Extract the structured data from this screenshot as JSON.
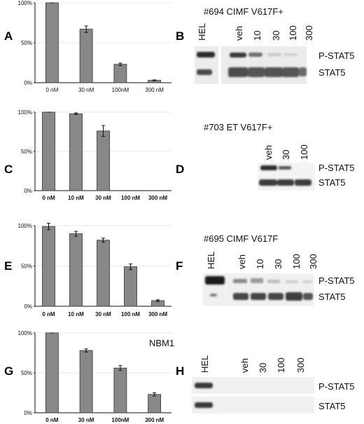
{
  "panels": {
    "A": "A",
    "B": "B",
    "C": "C",
    "D": "D",
    "E": "E",
    "F": "F",
    "G": "G",
    "H": "H"
  },
  "chart_data": [
    {
      "type": "bar",
      "panel": "A",
      "sample_label": "#694 CIMF V617F+",
      "categories": [
        "0 nM",
        "30 nM",
        "100nM",
        "300 nM"
      ],
      "values": [
        100,
        67,
        23,
        3
      ],
      "errors": [
        0,
        4,
        1.5,
        0.5
      ],
      "yticks": [
        "0%",
        "50%",
        "100%"
      ],
      "ylim": [
        0,
        100
      ],
      "grid": true,
      "bold_categories": false
    },
    {
      "type": "bar",
      "panel": "C",
      "sample_label": "#703 ET V617F+",
      "categories": [
        "0 nM",
        "10 nM",
        "30 nM",
        "100 nM",
        "300 nM"
      ],
      "values": [
        100,
        98,
        76,
        0,
        0
      ],
      "errors": [
        0,
        1,
        7,
        0,
        0
      ],
      "yticks": [
        "0%",
        "50%",
        "100%"
      ],
      "ylim": [
        0,
        100
      ],
      "grid": true,
      "bold_categories": true
    },
    {
      "type": "bar",
      "panel": "E",
      "sample_label": "#695 CIMF V617F",
      "categories": [
        "0 nM",
        "10 nM",
        "30 nM",
        "100 nM",
        "300 nM"
      ],
      "values": [
        99,
        90,
        82,
        49,
        7
      ],
      "errors": [
        4,
        3,
        2.5,
        3.5,
        1
      ],
      "yticks": [
        "0%",
        "50%",
        "100%"
      ],
      "ylim": [
        0,
        100
      ],
      "grid": true,
      "bold_categories": true
    },
    {
      "type": "bar",
      "panel": "G",
      "sample_label": "NBM1",
      "categories": [
        "0 nM",
        "30 nM",
        "100nM",
        "300 nM"
      ],
      "values": [
        100,
        78,
        56,
        23
      ],
      "errors": [
        0,
        2,
        3,
        2
      ],
      "yticks": [
        "0%",
        "50%",
        "100%"
      ],
      "ylim": [
        0,
        100
      ],
      "grid": true,
      "bold_categories": true
    }
  ],
  "blots": {
    "B": {
      "lanes": [
        "HEL",
        "veh",
        "10",
        "30",
        "100",
        "300"
      ],
      "rows": [
        "P-STAT5",
        "STAT5"
      ]
    },
    "D": {
      "lanes": [
        "veh",
        "30",
        "100"
      ],
      "rows": [
        "P-STAT5",
        "STAT5"
      ]
    },
    "F": {
      "lanes": [
        "HEL",
        "veh",
        "10",
        "30",
        "100",
        "300"
      ],
      "rows": [
        "P-STAT5",
        "STAT5"
      ]
    },
    "H": {
      "lanes": [
        "HEL",
        "veh",
        "30",
        "100",
        "300"
      ],
      "rows": [
        "P-STAT5",
        "STAT5"
      ]
    }
  }
}
